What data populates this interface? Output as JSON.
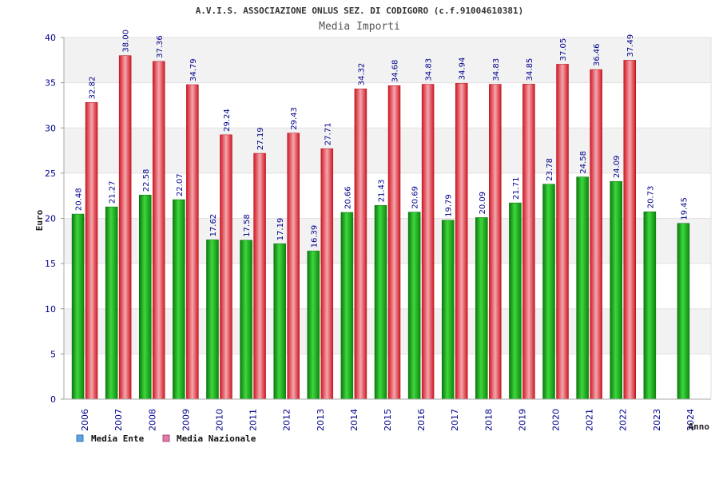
{
  "chart_data": {
    "type": "bar",
    "title": "A.V.I.S. ASSOCIAZIONE ONLUS SEZ. DI CODIGORO (c.f.91004610381)",
    "subtitle": "Media Importi",
    "xlabel": "Anno",
    "ylabel": "Euro",
    "ylim": [
      0,
      40
    ],
    "yticks": [
      0,
      5,
      10,
      15,
      20,
      25,
      30,
      35,
      40
    ],
    "categories": [
      "2006",
      "2007",
      "2008",
      "2009",
      "2010",
      "2011",
      "2012",
      "2013",
      "2014",
      "2015",
      "2016",
      "2017",
      "2018",
      "2019",
      "2020",
      "2021",
      "2022",
      "2023",
      "2024"
    ],
    "series": [
      {
        "name": "Media Ente",
        "color": "#1aa51a",
        "values": [
          20.48,
          21.27,
          22.58,
          22.07,
          17.62,
          17.58,
          17.19,
          16.39,
          20.66,
          21.43,
          20.69,
          19.79,
          20.09,
          21.71,
          23.78,
          24.58,
          24.09,
          20.73,
          19.45
        ],
        "labels": [
          "20.48",
          "21.27",
          "22.58",
          "22.07",
          "17.62",
          "17.58",
          "17.19",
          "16.39",
          "20.66",
          "21.43",
          "20.69",
          "19.79",
          "20.09",
          "21.71",
          "23.78",
          "24.58",
          "24.09",
          "20.73",
          "19.45"
        ]
      },
      {
        "name": "Media Nazionale",
        "color": "#e8303a",
        "values": [
          32.82,
          38.0,
          37.36,
          34.79,
          29.24,
          27.19,
          29.43,
          27.71,
          34.32,
          34.68,
          34.83,
          34.94,
          34.83,
          34.85,
          37.05,
          36.46,
          37.49,
          null,
          null
        ],
        "labels": [
          "32.82",
          "38.00",
          "37.36",
          "34.79",
          "29.24",
          "27.19",
          "29.43",
          "27.71",
          "34.32",
          "34.68",
          "34.83",
          "34.94",
          "34.83",
          "34.85",
          "37.05",
          "36.46",
          "37.49",
          null,
          null
        ]
      }
    ],
    "legend": {
      "position": "bottom-left",
      "items": [
        {
          "label": "Media Ente",
          "color": "#5ba3e6"
        },
        {
          "label": "Media Nazionale",
          "color": "#e07aa8"
        }
      ]
    },
    "grid": true,
    "band_colors": [
      "#f2f2f2",
      "#ffffff"
    ]
  }
}
